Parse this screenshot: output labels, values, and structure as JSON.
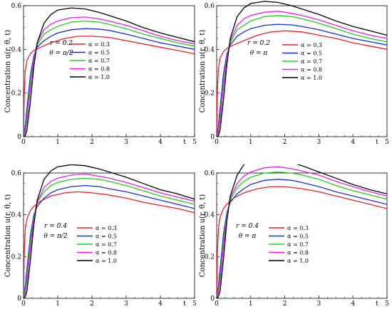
{
  "chart_data": [
    {
      "type": "line",
      "ylabel": "Concentration u(r, θ, t)",
      "xlabel": "t",
      "xlim": [
        0,
        5
      ],
      "ylim": [
        0,
        0.6
      ],
      "xticks": [
        "0",
        "1",
        "2",
        "3",
        "4",
        "5"
      ],
      "yticks": [
        "0",
        "0.2",
        "0.4",
        "0.6"
      ],
      "annotation": [
        "r = 0.2",
        "θ = π/2"
      ],
      "legend_position": "center",
      "series": [
        {
          "name": "α = 0.3",
          "color": "#e8202a",
          "x": [
            0,
            0.02,
            0.05,
            0.1,
            0.2,
            0.3,
            0.5,
            0.8,
            1.2,
            1.6,
            2,
            2.5,
            3,
            3.5,
            4,
            4.5,
            5
          ],
          "y": [
            0,
            0.2,
            0.3,
            0.35,
            0.38,
            0.395,
            0.41,
            0.43,
            0.45,
            0.46,
            0.46,
            0.455,
            0.44,
            0.425,
            0.41,
            0.395,
            0.38
          ]
        },
        {
          "name": "α = 0.5",
          "color": "#1a2fd0",
          "x": [
            0,
            0.05,
            0.1,
            0.2,
            0.3,
            0.4,
            0.6,
            0.8,
            1,
            1.4,
            1.8,
            2.2,
            2.5,
            3,
            3.5,
            4,
            4.5,
            5
          ],
          "y": [
            0,
            0.05,
            0.13,
            0.28,
            0.37,
            0.41,
            0.44,
            0.46,
            0.475,
            0.49,
            0.495,
            0.493,
            0.487,
            0.47,
            0.45,
            0.43,
            0.415,
            0.4
          ]
        },
        {
          "name": "α = 0.7",
          "color": "#22d01a",
          "x": [
            0,
            0.05,
            0.1,
            0.2,
            0.3,
            0.4,
            0.6,
            0.8,
            1,
            1.4,
            1.8,
            2.2,
            2.5,
            3,
            3.5,
            4,
            4.5,
            5
          ],
          "y": [
            0,
            0.03,
            0.09,
            0.24,
            0.36,
            0.42,
            0.47,
            0.49,
            0.505,
            0.525,
            0.53,
            0.525,
            0.515,
            0.495,
            0.47,
            0.45,
            0.43,
            0.415
          ]
        },
        {
          "name": "α = 0.8",
          "color": "#e81ee8",
          "x": [
            0,
            0.05,
            0.1,
            0.2,
            0.3,
            0.4,
            0.6,
            0.8,
            1,
            1.4,
            1.8,
            2.2,
            2.5,
            3,
            3.5,
            4,
            4.5,
            5
          ],
          "y": [
            0,
            0.02,
            0.07,
            0.22,
            0.35,
            0.43,
            0.49,
            0.515,
            0.53,
            0.545,
            0.548,
            0.54,
            0.53,
            0.51,
            0.485,
            0.46,
            0.44,
            0.425
          ]
        },
        {
          "name": "α = 1.0",
          "color": "#000000",
          "x": [
            0,
            0.05,
            0.1,
            0.2,
            0.3,
            0.4,
            0.6,
            0.8,
            1,
            1.4,
            1.8,
            2.2,
            2.5,
            3,
            3.5,
            4,
            4.5,
            5
          ],
          "y": [
            0,
            0.005,
            0.03,
            0.16,
            0.32,
            0.43,
            0.52,
            0.56,
            0.58,
            0.59,
            0.585,
            0.57,
            0.555,
            0.53,
            0.5,
            0.475,
            0.455,
            0.435
          ]
        }
      ]
    },
    {
      "type": "line",
      "ylabel": "Concentration u(r, θ, t)",
      "xlabel": "t",
      "xlim": [
        0,
        5
      ],
      "ylim": [
        0,
        0.6
      ],
      "xticks": [
        "0",
        "1",
        "2",
        "3",
        "4",
        "5"
      ],
      "yticks": [
        "0",
        "0.2",
        "0.4",
        "0.6"
      ],
      "annotation": [
        "r = 0.2",
        "θ = π"
      ],
      "legend_position": "center",
      "series": [
        {
          "name": "α = 0.3",
          "color": "#e8202a",
          "x": [
            0,
            0.02,
            0.05,
            0.1,
            0.2,
            0.3,
            0.5,
            0.8,
            1.2,
            1.6,
            2,
            2.5,
            3,
            3.5,
            4,
            4.5,
            5
          ],
          "y": [
            0,
            0.21,
            0.31,
            0.36,
            0.39,
            0.405,
            0.42,
            0.44,
            0.465,
            0.48,
            0.485,
            0.48,
            0.465,
            0.45,
            0.43,
            0.415,
            0.4
          ]
        },
        {
          "name": "α = 0.5",
          "color": "#1a2fd0",
          "x": [
            0,
            0.05,
            0.1,
            0.2,
            0.3,
            0.4,
            0.6,
            0.8,
            1,
            1.4,
            1.8,
            2.2,
            2.5,
            3,
            3.5,
            4,
            4.5,
            5
          ],
          "y": [
            0,
            0.05,
            0.13,
            0.29,
            0.38,
            0.42,
            0.46,
            0.48,
            0.495,
            0.51,
            0.515,
            0.512,
            0.505,
            0.49,
            0.47,
            0.45,
            0.435,
            0.42
          ]
        },
        {
          "name": "α = 0.7",
          "color": "#22d01a",
          "x": [
            0,
            0.05,
            0.1,
            0.2,
            0.3,
            0.4,
            0.6,
            0.8,
            1,
            1.4,
            1.8,
            2.2,
            2.5,
            3,
            3.5,
            4,
            4.5,
            5
          ],
          "y": [
            0,
            0.03,
            0.09,
            0.25,
            0.37,
            0.43,
            0.49,
            0.51,
            0.53,
            0.55,
            0.555,
            0.55,
            0.54,
            0.52,
            0.495,
            0.47,
            0.45,
            0.435
          ]
        },
        {
          "name": "α = 0.8",
          "color": "#e81ee8",
          "x": [
            0,
            0.05,
            0.1,
            0.2,
            0.3,
            0.4,
            0.6,
            0.8,
            1,
            1.4,
            1.8,
            2.2,
            2.5,
            3,
            3.5,
            4,
            4.5,
            5
          ],
          "y": [
            0,
            0.02,
            0.07,
            0.23,
            0.36,
            0.44,
            0.51,
            0.54,
            0.555,
            0.57,
            0.575,
            0.565,
            0.555,
            0.535,
            0.51,
            0.485,
            0.465,
            0.45
          ]
        },
        {
          "name": "α = 1.0",
          "color": "#000000",
          "x": [
            0,
            0.05,
            0.1,
            0.2,
            0.3,
            0.4,
            0.6,
            0.8,
            1,
            1.4,
            1.8,
            2.2,
            2.5,
            3,
            3.5,
            4,
            4.5,
            5
          ],
          "y": [
            0,
            0.005,
            0.03,
            0.17,
            0.33,
            0.45,
            0.55,
            0.59,
            0.61,
            0.62,
            0.615,
            0.6,
            0.585,
            0.56,
            0.53,
            0.505,
            0.485,
            0.465
          ]
        }
      ]
    },
    {
      "type": "line",
      "ylabel": "Concentration u(r, θ, t)",
      "xlabel": "t",
      "xlim": [
        0,
        5
      ],
      "ylim": [
        0,
        0.6
      ],
      "xticks": [
        "0",
        "1",
        "2",
        "3",
        "4",
        "5"
      ],
      "yticks": [
        "0",
        "0.2",
        "0.4",
        "0.6"
      ],
      "annotation": [
        "r = 0.4",
        "θ = π/2"
      ],
      "legend_position": "center",
      "series": [
        {
          "name": "α = 0.3",
          "color": "#e8202a",
          "x": [
            0,
            0.02,
            0.05,
            0.1,
            0.2,
            0.3,
            0.5,
            0.8,
            1.2,
            1.6,
            2,
            2.5,
            3,
            3.5,
            4,
            4.5,
            5
          ],
          "y": [
            0,
            0.22,
            0.33,
            0.38,
            0.42,
            0.44,
            0.465,
            0.49,
            0.505,
            0.51,
            0.505,
            0.495,
            0.48,
            0.46,
            0.445,
            0.43,
            0.41
          ]
        },
        {
          "name": "α = 0.5",
          "color": "#1a2fd0",
          "x": [
            0,
            0.05,
            0.1,
            0.2,
            0.3,
            0.4,
            0.6,
            0.8,
            1,
            1.4,
            1.8,
            2.2,
            2.5,
            3,
            3.5,
            4,
            4.5,
            5
          ],
          "y": [
            0,
            0.06,
            0.14,
            0.3,
            0.4,
            0.44,
            0.48,
            0.505,
            0.52,
            0.535,
            0.54,
            0.535,
            0.525,
            0.51,
            0.49,
            0.47,
            0.45,
            0.43
          ]
        },
        {
          "name": "α = 0.7",
          "color": "#22d01a",
          "x": [
            0,
            0.05,
            0.1,
            0.2,
            0.3,
            0.4,
            0.6,
            0.8,
            1,
            1.4,
            1.8,
            2.2,
            2.5,
            3,
            3.5,
            4,
            4.5,
            5
          ],
          "y": [
            0,
            0.04,
            0.1,
            0.27,
            0.39,
            0.46,
            0.51,
            0.54,
            0.555,
            0.57,
            0.575,
            0.57,
            0.56,
            0.54,
            0.515,
            0.49,
            0.47,
            0.45
          ]
        },
        {
          "name": "α = 0.8",
          "color": "#e81ee8",
          "x": [
            0,
            0.05,
            0.1,
            0.2,
            0.3,
            0.4,
            0.6,
            0.8,
            1,
            1.4,
            1.8,
            2.2,
            2.5,
            3,
            3.5,
            4,
            4.5,
            5
          ],
          "y": [
            0,
            0.025,
            0.08,
            0.24,
            0.38,
            0.46,
            0.53,
            0.56,
            0.575,
            0.59,
            0.595,
            0.585,
            0.575,
            0.555,
            0.53,
            0.505,
            0.485,
            0.465
          ]
        },
        {
          "name": "α = 1.0",
          "color": "#000000",
          "x": [
            0,
            0.05,
            0.1,
            0.2,
            0.3,
            0.4,
            0.6,
            0.8,
            1,
            1.4,
            1.8,
            2.2,
            2.5,
            3,
            3.5,
            4,
            4.5,
            5
          ],
          "y": [
            0,
            0.008,
            0.035,
            0.18,
            0.35,
            0.47,
            0.57,
            0.61,
            0.63,
            0.64,
            0.635,
            0.62,
            0.605,
            0.58,
            0.55,
            0.52,
            0.5,
            0.475
          ]
        }
      ]
    },
    {
      "type": "line",
      "ylabel": "Concentration u(r, θ, t)",
      "xlabel": "t",
      "xlim": [
        0,
        5
      ],
      "ylim": [
        0,
        0.6
      ],
      "xticks": [
        "0",
        "1",
        "2",
        "3",
        "4",
        "5"
      ],
      "yticks": [
        "0",
        "0.2",
        "0.4",
        "0.6"
      ],
      "annotation": [
        "r = 0.4",
        "θ = π"
      ],
      "legend_position": "center",
      "series": [
        {
          "name": "α = 0.3",
          "color": "#e8202a",
          "x": [
            0,
            0.02,
            0.05,
            0.1,
            0.2,
            0.3,
            0.5,
            0.8,
            1.2,
            1.6,
            2,
            2.5,
            3,
            3.5,
            4,
            4.5,
            5
          ],
          "y": [
            0,
            0.22,
            0.33,
            0.39,
            0.43,
            0.45,
            0.48,
            0.505,
            0.525,
            0.535,
            0.535,
            0.525,
            0.51,
            0.49,
            0.47,
            0.45,
            0.43
          ]
        },
        {
          "name": "α = 0.5",
          "color": "#1a2fd0",
          "x": [
            0,
            0.05,
            0.1,
            0.2,
            0.3,
            0.4,
            0.6,
            0.8,
            1,
            1.4,
            1.8,
            2.2,
            2.5,
            3,
            3.5,
            4,
            4.5,
            5
          ],
          "y": [
            0,
            0.06,
            0.14,
            0.31,
            0.41,
            0.46,
            0.5,
            0.525,
            0.545,
            0.565,
            0.57,
            0.565,
            0.555,
            0.535,
            0.51,
            0.49,
            0.47,
            0.45
          ]
        },
        {
          "name": "α = 0.7",
          "color": "#22d01a",
          "x": [
            0,
            0.05,
            0.1,
            0.2,
            0.3,
            0.4,
            0.6,
            0.8,
            1,
            1.4,
            1.8,
            2.2,
            2.5,
            3,
            3.5,
            4,
            4.5,
            5
          ],
          "y": [
            0,
            0.04,
            0.1,
            0.28,
            0.4,
            0.47,
            0.53,
            0.56,
            0.58,
            0.6,
            0.605,
            0.6,
            0.59,
            0.57,
            0.54,
            0.515,
            0.495,
            0.475
          ]
        },
        {
          "name": "α = 0.8",
          "color": "#e81ee8",
          "x": [
            0,
            0.05,
            0.1,
            0.2,
            0.3,
            0.4,
            0.6,
            0.8,
            1,
            1.4,
            1.8,
            2.2,
            2.5,
            3,
            3.5,
            4,
            4.5,
            5
          ],
          "y": [
            0,
            0.025,
            0.08,
            0.25,
            0.39,
            0.48,
            0.55,
            0.585,
            0.605,
            0.625,
            0.63,
            0.62,
            0.61,
            0.59,
            0.56,
            0.535,
            0.51,
            0.49
          ]
        },
        {
          "name": "α = 1.0",
          "color": "#000000",
          "x": [
            0,
            0.05,
            0.1,
            0.2,
            0.3,
            0.4,
            0.6,
            0.8,
            1,
            1.4,
            1.8,
            2.2,
            2.5,
            3,
            3.5,
            4,
            4.5,
            5
          ],
          "y": [
            0,
            0.008,
            0.035,
            0.19,
            0.37,
            0.49,
            0.59,
            0.64,
            0.66,
            0.67,
            0.665,
            0.65,
            0.635,
            0.605,
            0.575,
            0.545,
            0.52,
            0.5
          ]
        }
      ]
    }
  ]
}
